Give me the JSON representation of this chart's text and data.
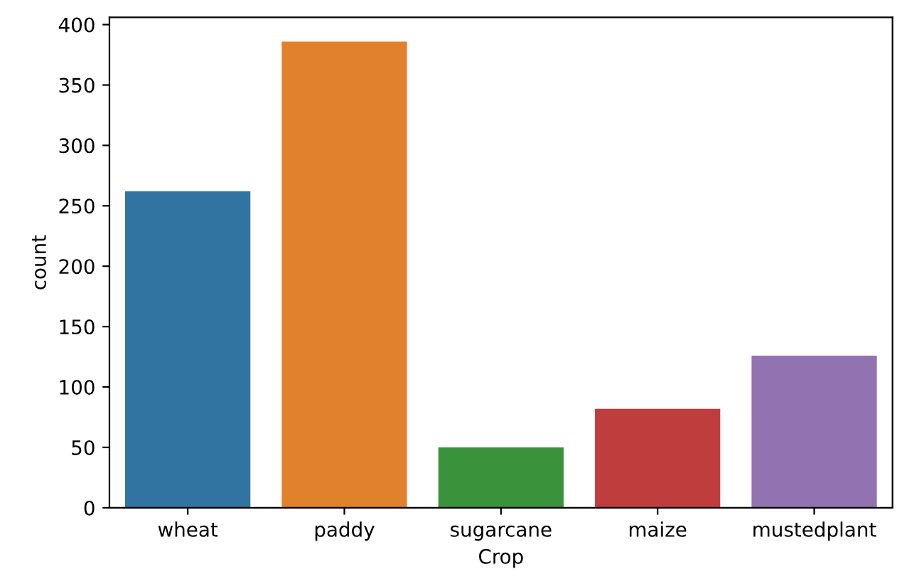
{
  "chart_data": {
    "type": "bar",
    "xlabel": "Crop",
    "ylabel": "count",
    "categories": [
      "wheat",
      "paddy",
      "sugarcane",
      "maize",
      "mustedplant"
    ],
    "values": [
      262,
      386,
      50,
      82,
      126
    ],
    "colors": [
      "#3274a1",
      "#e1812c",
      "#3a923a",
      "#c03d3e",
      "#9372b2"
    ],
    "ylim": [
      0,
      406
    ],
    "yticks": [
      0,
      50,
      100,
      150,
      200,
      250,
      300,
      350,
      400
    ],
    "grid": false
  }
}
